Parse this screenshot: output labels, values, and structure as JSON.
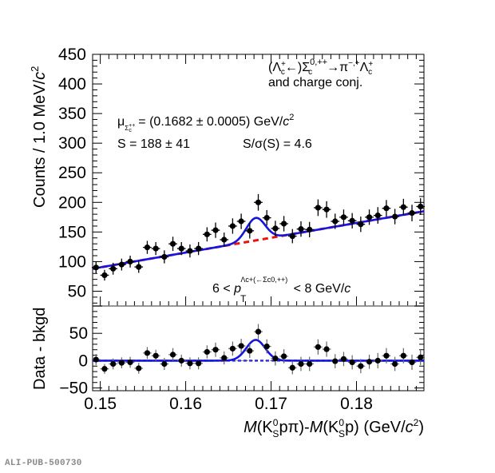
{
  "chart_data": [
    {
      "panel": "top",
      "type": "scatter",
      "title": "",
      "xlabel": "",
      "ylabel": "Counts / 1.0 MeV/c²",
      "ylabel_parts": {
        "main": "Counts / 1.0 MeV/",
        "italic": "c",
        "sup": "2"
      },
      "xlim": [
        0.1491,
        0.1879
      ],
      "ylim": [
        25,
        450
      ],
      "yticks": [
        50,
        100,
        150,
        200,
        250,
        300,
        350,
        400,
        450
      ],
      "grid": false,
      "annotations": {
        "decay_line1": {
          "text": "(Λᶜ⁺←)Σᶜ⁰ʴ⁺⁺→π⁻ʴ⁺Λᶜ⁺"
        },
        "decay_line2": "and charge conj.",
        "mu_line": {
          "mu": "μ",
          "sub": "Σc++",
          "rest": " = (0.1682 ± 0.0005) GeV/",
          "italic": "c",
          "sup": "2"
        },
        "s_line": "S = 188 ± 41",
        "signif_line": "S/σ(S) = 4.6",
        "pt_line": {
          "prefix": "6 < ",
          "p": "p",
          "sub": "T",
          "sup": "Λc+(←Σc0,++)",
          "suffix": " < 8 GeV/",
          "italic": "c"
        }
      },
      "series": [
        {
          "name": "Data",
          "marker": "circle",
          "color": "#000000",
          "x": [
            0.1495,
            0.1505,
            0.1515,
            0.1525,
            0.1535,
            0.1545,
            0.1555,
            0.1565,
            0.1575,
            0.1585,
            0.1595,
            0.1605,
            0.1615,
            0.1625,
            0.1635,
            0.1645,
            0.1655,
            0.1665,
            0.1675,
            0.1685,
            0.1695,
            0.1705,
            0.1715,
            0.1725,
            0.1735,
            0.1745,
            0.1755,
            0.1765,
            0.1775,
            0.1785,
            0.1795,
            0.1805,
            0.1815,
            0.1825,
            0.1835,
            0.1845,
            0.1855,
            0.1865,
            0.1875
          ],
          "y": [
            90,
            77,
            88,
            95,
            100,
            91,
            124,
            122,
            108,
            130,
            122,
            118,
            122,
            146,
            153,
            137,
            160,
            168,
            152,
            200,
            174,
            156,
            164,
            143,
            155,
            154,
            191,
            188,
            168,
            175,
            169,
            163,
            175,
            178,
            190,
            176,
            192,
            182,
            193
          ],
          "yerr": [
            10,
            9,
            10,
            10,
            10,
            10,
            11,
            11,
            11,
            12,
            11,
            11,
            11,
            12,
            13,
            12,
            13,
            13,
            13,
            14,
            13,
            13,
            13,
            12,
            13,
            13,
            14,
            14,
            13,
            13,
            13,
            13,
            13,
            14,
            14,
            13,
            14,
            14,
            14
          ]
        },
        {
          "name": "Total fit",
          "type": "line",
          "color": "#1515e0",
          "mean": 0.1682,
          "sigma": 0.0011,
          "signal_amplitude": 38
        },
        {
          "name": "Background",
          "type": "line",
          "style": "dashed",
          "color": "#ee1111",
          "bkg_start": [
            0.1491,
            88
          ],
          "bkg_end": [
            0.1879,
            185
          ]
        }
      ]
    },
    {
      "panel": "bottom",
      "type": "scatter",
      "xlabel": "M(K⁰S pπ)-M(K⁰S p) (GeV/c²)",
      "xlabel_parts": {
        "m1": "M",
        "k1": "(K",
        "k1sup": "0",
        "k1sub": "S",
        "mid1": "pπ)-",
        "m2": "M",
        "k2": "(K",
        "k2sup": "0",
        "k2sub": "S",
        "mid2": "p) (GeV/",
        "c": "c",
        "csup": "2",
        "end": ")"
      },
      "ylabel": "Data - bkgd",
      "xlim": [
        0.1491,
        0.1879
      ],
      "ylim": [
        -55,
        100
      ],
      "xticks": [
        0.15,
        0.16,
        0.17,
        0.18
      ],
      "xtick_labels": [
        "0.15",
        "0.16",
        "0.17",
        "0.18"
      ],
      "yticks": [
        -50,
        0,
        50
      ],
      "ytick_labels": [
        "−50",
        "0",
        "50"
      ],
      "grid": false,
      "series": [
        {
          "name": "Residuals",
          "marker": "circle",
          "color": "#000000",
          "x": [
            0.1495,
            0.1505,
            0.1515,
            0.1525,
            0.1535,
            0.1545,
            0.1555,
            0.1565,
            0.1575,
            0.1585,
            0.1595,
            0.1605,
            0.1615,
            0.1625,
            0.1635,
            0.1645,
            0.1655,
            0.1665,
            0.1675,
            0.1685,
            0.1695,
            0.1705,
            0.1715,
            0.1725,
            0.1735,
            0.1745,
            0.1755,
            0.1765,
            0.1775,
            0.1785,
            0.1795,
            0.1805,
            0.1815,
            0.1825,
            0.1835,
            0.1845,
            0.1855,
            0.1865,
            0.1875
          ],
          "y": [
            2,
            -15,
            -6,
            -4,
            -3,
            -14,
            14,
            9,
            -6,
            11,
            0,
            -5,
            -5,
            16,
            20,
            5,
            22,
            27,
            18,
            53,
            26,
            4,
            8,
            -13,
            -6,
            -6,
            25,
            21,
            -1,
            3,
            -3,
            -10,
            -2,
            0,
            9,
            -6,
            9,
            -3,
            6
          ],
          "yerr": [
            10,
            9,
            10,
            10,
            10,
            10,
            11,
            11,
            11,
            12,
            11,
            11,
            11,
            12,
            13,
            12,
            13,
            13,
            13,
            14,
            13,
            13,
            13,
            12,
            13,
            13,
            14,
            14,
            13,
            13,
            13,
            13,
            13,
            14,
            14,
            13,
            14,
            14,
            14
          ]
        },
        {
          "name": "Signal fit",
          "type": "line",
          "color": "#1515e0",
          "mean": 0.1682,
          "sigma": 0.0011,
          "amplitude": 38
        },
        {
          "name": "Zero line",
          "type": "line",
          "style": "dashed",
          "color": "#888888",
          "y": 0
        }
      ]
    }
  ],
  "footer": "ALI-PUB-500730"
}
